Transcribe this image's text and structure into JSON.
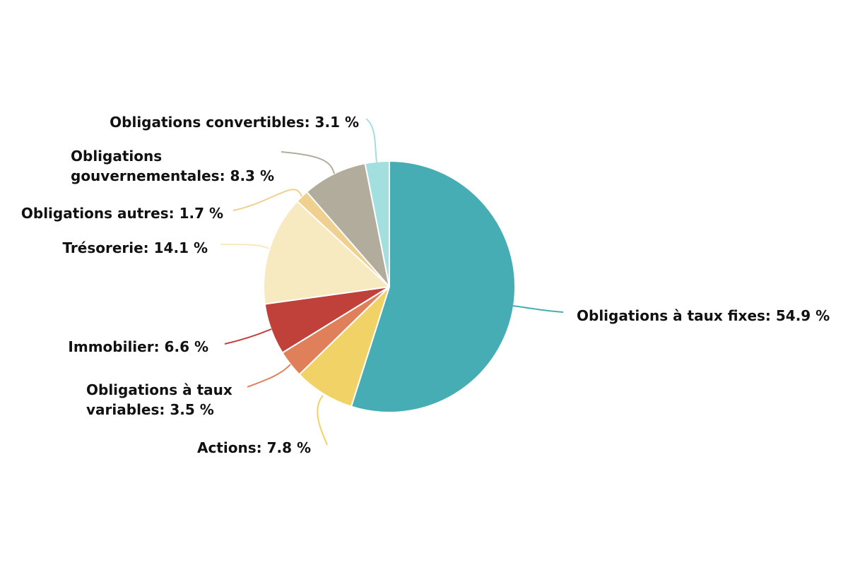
{
  "chart_data": {
    "type": "pie",
    "title": "",
    "unit": "%",
    "slices": [
      {
        "label": "Obligations à taux fixes",
        "value": 54.9,
        "display": "Obligations à taux fixes: 54.9 %",
        "lines": [
          "Obligations à taux fixes: 54.9 %"
        ],
        "color": "#47adb4"
      },
      {
        "label": "Actions",
        "value": 7.8,
        "display": "Actions: 7.8 %",
        "lines": [
          "Actions: 7.8 %"
        ],
        "color": "#f1d266"
      },
      {
        "label": "Obligations à taux variables",
        "value": 3.5,
        "display": "Obligations à taux variables: 3.5 %",
        "lines": [
          "Obligations à taux",
          "variables: 3.5 %"
        ],
        "color": "#e0805a"
      },
      {
        "label": "Immobilier",
        "value": 6.6,
        "display": "Immobilier: 6.6 %",
        "lines": [
          "Immobilier: 6.6 %"
        ],
        "color": "#c0403a"
      },
      {
        "label": "Trésorerie",
        "value": 14.1,
        "display": "Trésorerie: 14.1 %",
        "lines": [
          "Trésorerie: 14.1 %"
        ],
        "color": "#f7e9c0"
      },
      {
        "label": "Obligations autres",
        "value": 1.7,
        "display": "Obligations autres: 1.7 %",
        "lines": [
          "Obligations autres: 1.7 %"
        ],
        "color": "#f0d08f"
      },
      {
        "label": "Obligations gouvernementales",
        "value": 8.3,
        "display": "Obligations gouvernementales: 8.3 %",
        "lines": [
          "Obligations",
          "gouvernementales: 8.3 %"
        ],
        "color": "#b1ac9c"
      },
      {
        "label": "Obligations convertibles",
        "value": 3.1,
        "display": "Obligations convertibles: 3.1 %",
        "lines": [
          "Obligations convertibles: 3.1 %"
        ],
        "color": "#a4dfe0"
      }
    ]
  }
}
